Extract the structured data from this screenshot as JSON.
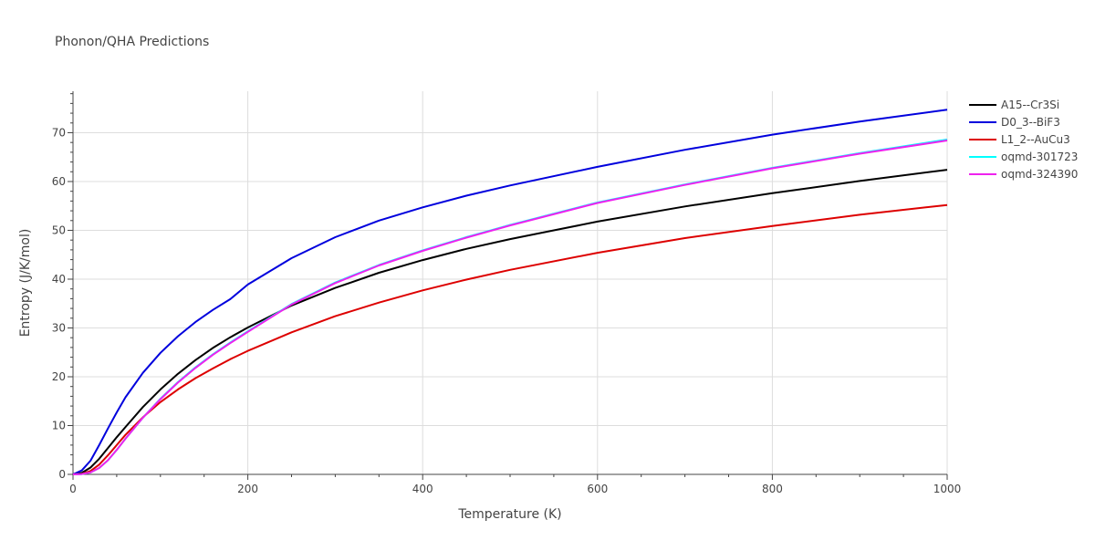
{
  "chart_data": {
    "type": "line",
    "title": "Phonon/QHA Predictions",
    "xlabel": "Temperature (K)",
    "ylabel": "Entropy (J/K/mol)",
    "xlim": [
      0,
      1000
    ],
    "ylim": [
      0,
      78.5
    ],
    "xticks": [
      0,
      200,
      400,
      600,
      800,
      1000
    ],
    "yticks": [
      0,
      10,
      20,
      30,
      40,
      50,
      60,
      70
    ],
    "grid": true,
    "legend": "right",
    "series": [
      {
        "name": "A15--Cr3Si",
        "color": "#000000",
        "x": [
          0,
          10,
          20,
          30,
          40,
          50,
          60,
          80,
          100,
          120,
          140,
          160,
          180,
          200,
          250,
          300,
          350,
          400,
          450,
          500,
          600,
          700,
          800,
          900,
          1000
        ],
        "y": [
          0,
          0.3,
          1.4,
          3.2,
          5.4,
          7.6,
          9.7,
          13.8,
          17.4,
          20.6,
          23.4,
          25.9,
          28.1,
          30.1,
          34.6,
          38.2,
          41.3,
          43.9,
          46.2,
          48.2,
          51.8,
          54.9,
          57.6,
          60.1,
          62.4
        ]
      },
      {
        "name": "D0_3--BiF3",
        "color": "#0000dd",
        "x": [
          0,
          10,
          20,
          30,
          40,
          50,
          60,
          80,
          100,
          120,
          140,
          160,
          180,
          200,
          250,
          300,
          350,
          400,
          450,
          500,
          600,
          700,
          800,
          900,
          1000
        ],
        "y": [
          0,
          0.8,
          2.8,
          6.0,
          9.4,
          12.7,
          15.8,
          20.8,
          24.9,
          28.3,
          31.2,
          33.7,
          35.9,
          38.9,
          44.3,
          48.6,
          52.0,
          54.7,
          57.1,
          59.2,
          63.0,
          66.5,
          69.6,
          72.3,
          74.7
        ]
      },
      {
        "name": "L1_2--AuCu3",
        "color": "#dd0000",
        "x": [
          0,
          10,
          20,
          30,
          40,
          50,
          60,
          80,
          100,
          120,
          140,
          160,
          180,
          200,
          250,
          300,
          350,
          400,
          450,
          500,
          600,
          700,
          800,
          900,
          1000
        ],
        "y": [
          0,
          0.1,
          0.7,
          2.0,
          3.9,
          6.0,
          8.1,
          11.7,
          14.8,
          17.4,
          19.7,
          21.7,
          23.6,
          25.3,
          29.1,
          32.4,
          35.2,
          37.7,
          39.9,
          41.9,
          45.4,
          48.4,
          50.9,
          53.2,
          55.2
        ]
      },
      {
        "name": "oqmd-301723",
        "color": "#00ffff",
        "x": [
          0,
          10,
          20,
          30,
          40,
          50,
          60,
          80,
          100,
          120,
          140,
          160,
          180,
          200,
          250,
          300,
          350,
          400,
          450,
          500,
          600,
          700,
          800,
          900,
          1000
        ],
        "y": [
          0,
          0.05,
          0.4,
          1.3,
          2.9,
          5.0,
          7.3,
          11.6,
          15.5,
          18.9,
          21.9,
          24.6,
          27.0,
          29.3,
          34.9,
          39.3,
          42.9,
          45.9,
          48.6,
          51.1,
          55.7,
          59.4,
          62.8,
          65.8,
          68.6
        ]
      },
      {
        "name": "oqmd-324390",
        "color": "#ee22ee",
        "x": [
          0,
          10,
          20,
          30,
          40,
          50,
          60,
          80,
          100,
          120,
          140,
          160,
          180,
          200,
          250,
          300,
          350,
          400,
          450,
          500,
          600,
          700,
          800,
          900,
          1000
        ],
        "y": [
          0,
          0.05,
          0.4,
          1.3,
          2.9,
          5.0,
          7.3,
          11.6,
          15.4,
          18.8,
          21.8,
          24.5,
          26.9,
          29.2,
          34.8,
          39.2,
          42.8,
          45.8,
          48.5,
          51.0,
          55.6,
          59.3,
          62.7,
          65.7,
          68.4
        ]
      }
    ]
  }
}
